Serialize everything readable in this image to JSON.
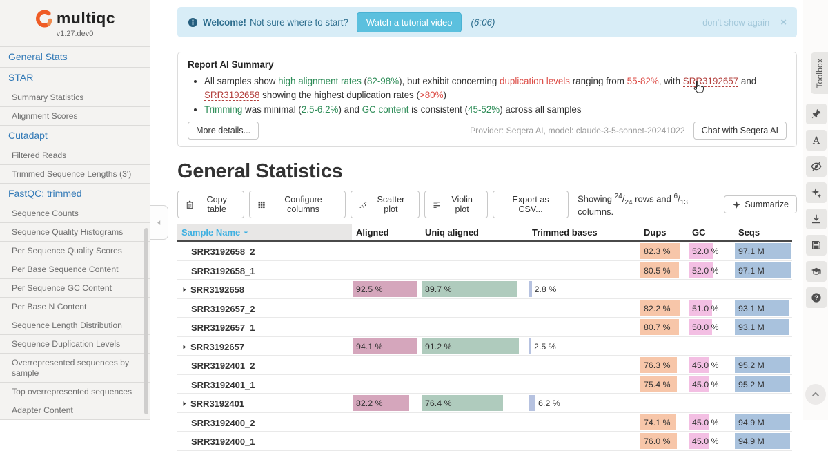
{
  "sidebar": {
    "logo_text": "multiqc",
    "version": "v1.27.dev0",
    "items": [
      {
        "label": "General Stats",
        "type": "module"
      },
      {
        "label": "STAR",
        "type": "module"
      },
      {
        "label": "Summary Statistics",
        "type": "section"
      },
      {
        "label": "Alignment Scores",
        "type": "section"
      },
      {
        "label": "Cutadapt",
        "type": "module"
      },
      {
        "label": "Filtered Reads",
        "type": "section"
      },
      {
        "label": "Trimmed Sequence Lengths (3')",
        "type": "section"
      },
      {
        "label": "FastQC: trimmed",
        "type": "module"
      },
      {
        "label": "Sequence Counts",
        "type": "section"
      },
      {
        "label": "Sequence Quality Histograms",
        "type": "section"
      },
      {
        "label": "Per Sequence Quality Scores",
        "type": "section"
      },
      {
        "label": "Per Base Sequence Content",
        "type": "section"
      },
      {
        "label": "Per Sequence GC Content",
        "type": "section"
      },
      {
        "label": "Per Base N Content",
        "type": "section"
      },
      {
        "label": "Sequence Length Distribution",
        "type": "section"
      },
      {
        "label": "Sequence Duplication Levels",
        "type": "section"
      },
      {
        "label": "Overrepresented sequences by sample",
        "type": "section"
      },
      {
        "label": "Top overrepresented sequences",
        "type": "section"
      },
      {
        "label": "Adapter Content",
        "type": "section"
      }
    ]
  },
  "welcome_banner": {
    "icon": "info-circle-icon",
    "bold_text": "Welcome!",
    "text": "Not sure where to start?",
    "button_label": "Watch a tutorial video",
    "duration": "(6:06)",
    "dismiss_label": "don't show again",
    "close_label": "×"
  },
  "ai_summary": {
    "title": "Report AI Summary",
    "bullets": [
      [
        {
          "t": "All samples show ",
          "s": "n"
        },
        {
          "t": "high alignment rates",
          "s": "g"
        },
        {
          "t": " (",
          "s": "n"
        },
        {
          "t": "82-98%",
          "s": "g"
        },
        {
          "t": "), but exhibit concerning ",
          "s": "n"
        },
        {
          "t": "duplication levels",
          "s": "r"
        },
        {
          "t": " ranging from ",
          "s": "n"
        },
        {
          "t": "55-82%",
          "s": "r"
        },
        {
          "t": ", with ",
          "s": "n"
        },
        {
          "t": "SRR3192657",
          "s": "l"
        },
        {
          "t": " and ",
          "s": "n"
        },
        {
          "t": "SRR3192658",
          "s": "l"
        },
        {
          "t": " showing the highest duplication rates (",
          "s": "n"
        },
        {
          "t": ">80%",
          "s": "r"
        },
        {
          "t": ")",
          "s": "n"
        }
      ],
      [
        {
          "t": "Trimming",
          "s": "g"
        },
        {
          "t": " was minimal (",
          "s": "n"
        },
        {
          "t": "2.5-6.2%",
          "s": "g"
        },
        {
          "t": ") and ",
          "s": "n"
        },
        {
          "t": "GC content",
          "s": "g"
        },
        {
          "t": " is consistent (",
          "s": "n"
        },
        {
          "t": "45-52%",
          "s": "g"
        },
        {
          "t": ") across all samples",
          "s": "n"
        }
      ]
    ],
    "more_details_label": "More details...",
    "provider_text": "Provider: Seqera AI, model: claude-3-5-sonnet-20241022",
    "chat_button_label": "Chat with Seqera AI"
  },
  "general_stats": {
    "title": "General Statistics",
    "toolbar": {
      "buttons": [
        {
          "icon": "copy-icon",
          "label": "Copy table"
        },
        {
          "icon": "grid-icon",
          "label": "Configure columns"
        },
        {
          "icon": "scatter-icon",
          "label": "Scatter plot"
        },
        {
          "icon": "violin-icon",
          "label": "Violin plot"
        },
        {
          "icon": null,
          "label": "Export as CSV..."
        }
      ],
      "showing": {
        "prefix": "Showing",
        "rows_shown": "24",
        "rows_total": "24",
        "mid": "rows and",
        "cols_shown": "6",
        "cols_total": "13",
        "suffix": "columns."
      },
      "summarize_label": "Summarize"
    }
  },
  "table": {
    "columns": [
      {
        "key": "sample",
        "label": "Sample Name",
        "sortable": true
      },
      {
        "key": "aligned",
        "label": "Aligned"
      },
      {
        "key": "uniq",
        "label": "Uniq aligned"
      },
      {
        "key": "trimmed",
        "label": "Trimmed bases"
      },
      {
        "key": "dups",
        "label": "Dups"
      },
      {
        "key": "gc",
        "label": "GC"
      },
      {
        "key": "seqs",
        "label": "Seqs"
      }
    ],
    "units": {
      "aligned": " %",
      "uniq": " %",
      "trimmed": " %",
      "dups": " %",
      "gc": " %",
      "seqs": " M"
    },
    "bar_colors": {
      "aligned": "#d5a6bc",
      "uniq": "#afcbbd",
      "trimmed": "#b6c2e0",
      "dups": "#f7c6a9",
      "gc": "#f3bfe3",
      "seqs": "#a9c2dd"
    },
    "rows": [
      {
        "name": "SRR3192658_2",
        "group": false,
        "dups": 82.3,
        "gc": 52.0,
        "seqs": 97.1
      },
      {
        "name": "SRR3192658_1",
        "group": false,
        "dups": 80.5,
        "gc": 52.0,
        "seqs": 97.1
      },
      {
        "name": "SRR3192658",
        "group": true,
        "aligned": 92.5,
        "uniq": 89.7,
        "trimmed": 2.8
      },
      {
        "name": "SRR3192657_2",
        "group": false,
        "dups": 82.2,
        "gc": 51.0,
        "seqs": 93.1
      },
      {
        "name": "SRR3192657_1",
        "group": false,
        "dups": 80.7,
        "gc": 50.0,
        "seqs": 93.1
      },
      {
        "name": "SRR3192657",
        "group": true,
        "aligned": 94.1,
        "uniq": 91.2,
        "trimmed": 2.5
      },
      {
        "name": "SRR3192401_2",
        "group": false,
        "dups": 76.3,
        "gc": 45.0,
        "seqs": 95.2
      },
      {
        "name": "SRR3192401_1",
        "group": false,
        "dups": 75.4,
        "gc": 45.0,
        "seqs": 95.2
      },
      {
        "name": "SRR3192401",
        "group": true,
        "aligned": 82.2,
        "uniq": 76.4,
        "trimmed": 6.2
      },
      {
        "name": "SRR3192400_2",
        "group": false,
        "dups": 74.1,
        "gc": 45.0,
        "seqs": 94.9
      },
      {
        "name": "SRR3192400_1",
        "group": false,
        "dups": 76.0,
        "gc": 45.0,
        "seqs": 94.9
      }
    ]
  },
  "toolbox": {
    "label": "Toolbox",
    "tools": [
      "highlight-pin",
      "rename-font",
      "hide-samples-eye-slash",
      "ai-sparkle",
      "export-download",
      "save-config",
      "tutorials-graduation-cap",
      "help-question"
    ],
    "scroll_top_icon": "chevron-up-icon"
  },
  "colors": {
    "accent_blue": "#5bc0de",
    "sidebar_link_blue": "#337ab7",
    "sort_header_blue": "#3fb0e1",
    "ai_green": "#2d8c57",
    "ai_red": "#dc4c46",
    "ai_link_red": "#b3403d",
    "logo_orange": "#ef5b25",
    "banner_bg": "#d8edf7"
  }
}
